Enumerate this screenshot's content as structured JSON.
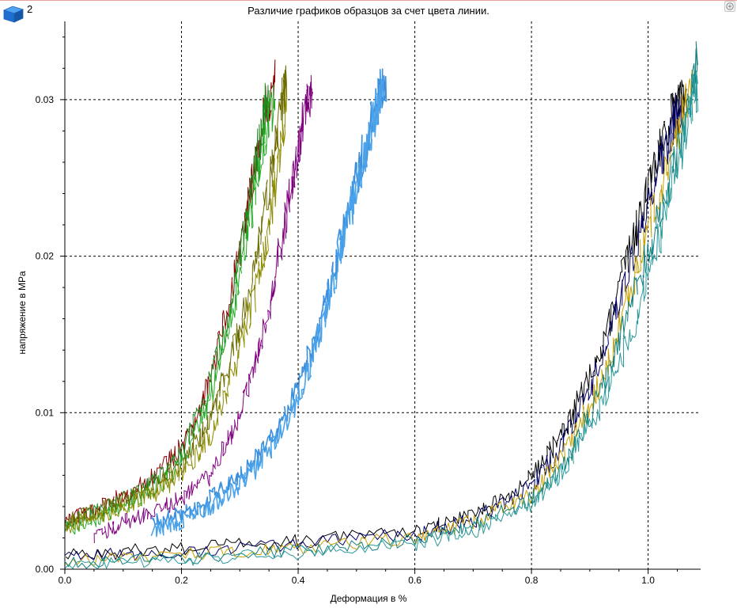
{
  "header": {
    "badge_icon": "blue-cube-icon",
    "badge_label": "2",
    "corner_icon": "zoom-plus-icon"
  },
  "chart_data": {
    "type": "line",
    "title": "Различие графиков образцов за счет цвета линии.",
    "xlabel": "Деформация в %",
    "ylabel": "напряжение в MPa",
    "xlim": [
      0,
      1.09
    ],
    "ylim": [
      0,
      0.035
    ],
    "x_ticks": [
      "0.0",
      "0.2",
      "0.4",
      "0.6",
      "0.8",
      "1.0"
    ],
    "x_tick_values": [
      0,
      0.2,
      0.4,
      0.6,
      0.8,
      1.0
    ],
    "y_ticks": [
      "0.00",
      "0.01",
      "0.02",
      "0.03"
    ],
    "y_tick_values": [
      0,
      0.01,
      0.02,
      0.03
    ],
    "grid": "dashed, major ticks",
    "legend": "none",
    "series": [
      {
        "color": "#8b0000",
        "points": [
          [
            0.0,
            0.003
          ],
          [
            0.05,
            0.0038
          ],
          [
            0.1,
            0.0047
          ],
          [
            0.15,
            0.0058
          ],
          [
            0.2,
            0.0078
          ],
          [
            0.24,
            0.011
          ],
          [
            0.28,
            0.0165
          ],
          [
            0.31,
            0.0225
          ],
          [
            0.335,
            0.028
          ],
          [
            0.36,
            0.0311
          ]
        ]
      },
      {
        "color": "#1f8a1f",
        "points": [
          [
            0.0,
            0.0028
          ],
          [
            0.05,
            0.0036
          ],
          [
            0.1,
            0.0044
          ],
          [
            0.15,
            0.0055
          ],
          [
            0.2,
            0.0074
          ],
          [
            0.24,
            0.0108
          ],
          [
            0.28,
            0.016
          ],
          [
            0.31,
            0.022
          ],
          [
            0.335,
            0.0275
          ],
          [
            0.35,
            0.0306
          ]
        ]
      },
      {
        "color": "#22aa22",
        "points": [
          [
            0.0,
            0.0025
          ],
          [
            0.05,
            0.0032
          ],
          [
            0.1,
            0.004
          ],
          [
            0.15,
            0.005
          ],
          [
            0.2,
            0.0068
          ],
          [
            0.24,
            0.01
          ],
          [
            0.28,
            0.015
          ],
          [
            0.31,
            0.021
          ],
          [
            0.34,
            0.027
          ],
          [
            0.36,
            0.03
          ]
        ]
      },
      {
        "color": "#6b6b00",
        "points": [
          [
            0.0,
            0.003
          ],
          [
            0.05,
            0.0037
          ],
          [
            0.1,
            0.0044
          ],
          [
            0.15,
            0.0052
          ],
          [
            0.2,
            0.0066
          ],
          [
            0.24,
            0.009
          ],
          [
            0.28,
            0.013
          ],
          [
            0.32,
            0.0185
          ],
          [
            0.35,
            0.0245
          ],
          [
            0.37,
            0.0295
          ],
          [
            0.38,
            0.0309
          ]
        ]
      },
      {
        "color": "#8b8b00",
        "points": [
          [
            0.0,
            0.0027
          ],
          [
            0.05,
            0.0033
          ],
          [
            0.1,
            0.004
          ],
          [
            0.15,
            0.0048
          ],
          [
            0.2,
            0.006
          ],
          [
            0.25,
            0.0085
          ],
          [
            0.29,
            0.0125
          ],
          [
            0.33,
            0.018
          ],
          [
            0.36,
            0.024
          ],
          [
            0.38,
            0.03
          ]
        ]
      },
      {
        "color": "#800080",
        "points": [
          [
            0.05,
            0.002
          ],
          [
            0.1,
            0.003
          ],
          [
            0.15,
            0.0036
          ],
          [
            0.2,
            0.0045
          ],
          [
            0.25,
            0.006
          ],
          [
            0.29,
            0.009
          ],
          [
            0.33,
            0.0135
          ],
          [
            0.36,
            0.0185
          ],
          [
            0.39,
            0.0245
          ],
          [
            0.41,
            0.029
          ],
          [
            0.425,
            0.0305
          ]
        ]
      },
      {
        "color": "#3b8fdc",
        "points": [
          [
            0.15,
            0.003
          ],
          [
            0.2,
            0.0035
          ],
          [
            0.25,
            0.0045
          ],
          [
            0.3,
            0.006
          ],
          [
            0.35,
            0.008
          ],
          [
            0.4,
            0.0115
          ],
          [
            0.44,
            0.016
          ],
          [
            0.47,
            0.0205
          ],
          [
            0.5,
            0.025
          ],
          [
            0.53,
            0.029
          ],
          [
            0.55,
            0.0315
          ]
        ]
      },
      {
        "color": "#4aa3ea",
        "points": [
          [
            0.15,
            0.0025
          ],
          [
            0.2,
            0.003
          ],
          [
            0.25,
            0.004
          ],
          [
            0.3,
            0.0054
          ],
          [
            0.35,
            0.0074
          ],
          [
            0.4,
            0.0108
          ],
          [
            0.44,
            0.0152
          ],
          [
            0.47,
            0.0198
          ],
          [
            0.5,
            0.0245
          ],
          [
            0.53,
            0.0285
          ],
          [
            0.545,
            0.0302
          ]
        ]
      },
      {
        "color": "#000000",
        "points": [
          [
            0.0,
            0.001
          ],
          [
            0.2,
            0.0013
          ],
          [
            0.4,
            0.0018
          ],
          [
            0.6,
            0.0025
          ],
          [
            0.7,
            0.0034
          ],
          [
            0.8,
            0.0058
          ],
          [
            0.86,
            0.009
          ],
          [
            0.92,
            0.014
          ],
          [
            0.97,
            0.0205
          ],
          [
            1.01,
            0.0255
          ],
          [
            1.04,
            0.029
          ],
          [
            1.065,
            0.0305
          ]
        ]
      },
      {
        "color": "#000066",
        "points": [
          [
            0.0,
            0.0008
          ],
          [
            0.2,
            0.0011
          ],
          [
            0.4,
            0.0016
          ],
          [
            0.6,
            0.0022
          ],
          [
            0.7,
            0.0031
          ],
          [
            0.8,
            0.0053
          ],
          [
            0.86,
            0.0083
          ],
          [
            0.92,
            0.0132
          ],
          [
            0.97,
            0.0195
          ],
          [
            1.01,
            0.0245
          ],
          [
            1.04,
            0.0282
          ],
          [
            1.06,
            0.03
          ]
        ]
      },
      {
        "color": "#c8a000",
        "points": [
          [
            0.0,
            0.0005
          ],
          [
            0.2,
            0.0009
          ],
          [
            0.4,
            0.0014
          ],
          [
            0.6,
            0.002
          ],
          [
            0.7,
            0.003
          ],
          [
            0.8,
            0.0048
          ],
          [
            0.86,
            0.0075
          ],
          [
            0.92,
            0.012
          ],
          [
            0.97,
            0.018
          ],
          [
            1.01,
            0.023
          ],
          [
            1.05,
            0.028
          ],
          [
            1.075,
            0.0307
          ]
        ]
      },
      {
        "color": "#0f7f7f",
        "points": [
          [
            0.0,
            0.0004
          ],
          [
            0.2,
            0.0007
          ],
          [
            0.4,
            0.0012
          ],
          [
            0.6,
            0.0018
          ],
          [
            0.7,
            0.0027
          ],
          [
            0.8,
            0.0045
          ],
          [
            0.86,
            0.007
          ],
          [
            0.92,
            0.0112
          ],
          [
            0.97,
            0.017
          ],
          [
            1.02,
            0.0225
          ],
          [
            1.06,
            0.028
          ],
          [
            1.085,
            0.0322
          ]
        ]
      },
      {
        "color": "#2a9a9a",
        "points": [
          [
            0.0,
            0.0003
          ],
          [
            0.2,
            0.0006
          ],
          [
            0.4,
            0.001
          ],
          [
            0.6,
            0.0016
          ],
          [
            0.7,
            0.0024
          ],
          [
            0.8,
            0.0041
          ],
          [
            0.86,
            0.0065
          ],
          [
            0.92,
            0.0105
          ],
          [
            0.98,
            0.016
          ],
          [
            1.03,
            0.0225
          ],
          [
            1.07,
            0.0285
          ],
          [
            1.085,
            0.031
          ]
        ]
      }
    ]
  }
}
